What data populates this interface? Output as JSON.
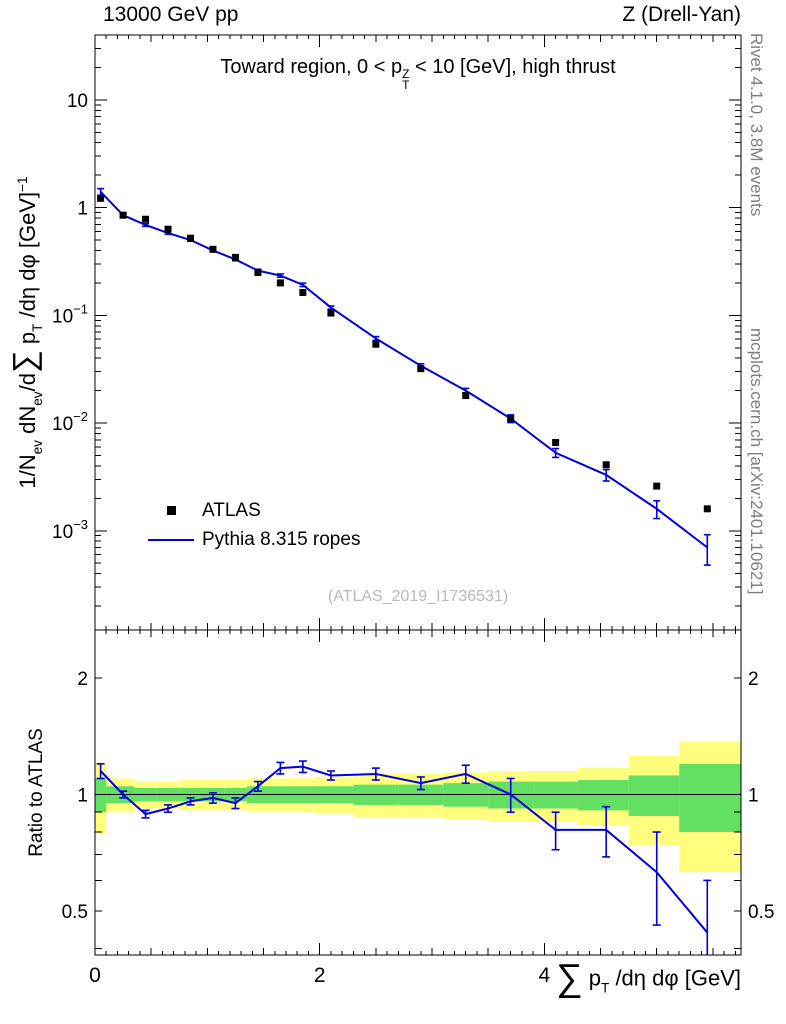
{
  "header": {
    "left": "13000 GeV pp",
    "right": "Z (Drell-Yan)"
  },
  "panel_title_segs": [
    {
      "t": "Toward region, 0 < p"
    },
    {
      "t": "Z|T",
      "m": "stack"
    },
    {
      "t": " < 10 [GeV], high thrust"
    }
  ],
  "labels": {
    "ylabel_main_segs": [
      {
        "t": "1/N"
      },
      {
        "t": "ev",
        "m": "sub"
      },
      {
        "t": " dN"
      },
      {
        "t": "ev",
        "m": "sub"
      },
      {
        "t": "/d"
      },
      {
        "t": "∑",
        "m": "big"
      },
      {
        "t": " p"
      },
      {
        "t": "T",
        "m": "sub"
      },
      {
        "t": " /dη dφ  [GeV]"
      },
      {
        "t": "−1",
        "m": "sup"
      }
    ],
    "ylabel_ratio": "Ratio to ATLAS",
    "xlabel_segs": [
      {
        "t": "∑",
        "m": "big"
      },
      {
        "t": " p"
      },
      {
        "t": "T",
        "m": "sub"
      },
      {
        "t": " /dη dφ [GeV]"
      }
    ],
    "watermark": "(ATLAS_2019_I1736531)",
    "rivet": "Rivet 4.1.0,  3.8M events",
    "mcplots": "mcplots.cern.ch [arXiv:2401.10621]"
  },
  "legend": [
    {
      "label": "ATLAS",
      "type": "marker"
    },
    {
      "label": "Pythia 8.315 ropes",
      "type": "line"
    }
  ],
  "colors": {
    "mc_line": "#0000d9",
    "data_marker": "#000000",
    "band_inner": "#63e063",
    "band_outer": "#ffff7d",
    "watermark": "#b9b9b9",
    "side_text": "#7d7d7d"
  },
  "chart_data": {
    "type": "line",
    "title": "Toward region, 0 < pT(Z) < 10 [GeV], high thrust",
    "xlabel": "Sum pT /deta dphi [GeV]",
    "ylabel": "1/Nev dNev/d Sum pT /deta dphi [GeV]^-1",
    "ratio_ylabel": "Ratio to ATLAS",
    "x_range": [
      0,
      5.75
    ],
    "main_y_range": [
      0.00012,
      40
    ],
    "main_y_scale": "log",
    "ratio_y_range": [
      0.385,
      2.66
    ],
    "ratio_y_scale": "log",
    "x": [
      0.05,
      0.25,
      0.45,
      0.65,
      0.85,
      1.05,
      1.25,
      1.45,
      1.65,
      1.85,
      2.1,
      2.5,
      2.9,
      3.3,
      3.7,
      4.1,
      4.55,
      5.0,
      5.45
    ],
    "series": [
      {
        "name": "ATLAS",
        "values": [
          1.22,
          0.85,
          0.78,
          0.63,
          0.52,
          0.41,
          0.345,
          0.25,
          0.2,
          0.163,
          0.105,
          0.054,
          0.032,
          0.018,
          0.011,
          0.0066,
          0.0041,
          0.0026,
          0.0016
        ]
      },
      {
        "name": "Pythia 8.315 ropes",
        "values": [
          1.4,
          0.85,
          0.69,
          0.58,
          0.5,
          0.4,
          0.33,
          0.26,
          0.234,
          0.192,
          0.118,
          0.061,
          0.034,
          0.02,
          0.011,
          0.0053,
          0.0033,
          0.0016,
          0.0007
        ],
        "errors": [
          0.1,
          0.025,
          0.02,
          0.015,
          0.013,
          0.011,
          0.009,
          0.008,
          0.008,
          0.007,
          0.004,
          0.0025,
          0.0015,
          0.001,
          0.0009,
          0.0005,
          0.0004,
          0.0003,
          0.00022
        ]
      }
    ],
    "ratio": {
      "values": [
        1.15,
        1.0,
        0.89,
        0.92,
        0.96,
        0.98,
        0.95,
        1.05,
        1.17,
        1.18,
        1.12,
        1.13,
        1.07,
        1.13,
        1.0,
        0.81,
        0.81,
        0.63,
        0.44
      ],
      "errors": [
        0.05,
        0.02,
        0.02,
        0.02,
        0.02,
        0.03,
        0.03,
        0.03,
        0.04,
        0.04,
        0.03,
        0.04,
        0.04,
        0.06,
        0.1,
        0.09,
        0.12,
        0.17,
        0.16
      ]
    },
    "bands": {
      "edges": [
        0,
        0.1,
        0.35,
        0.55,
        0.75,
        0.95,
        1.15,
        1.35,
        1.55,
        1.75,
        1.95,
        2.3,
        2.7,
        3.1,
        3.5,
        3.9,
        4.3,
        4.75,
        5.2,
        5.75
      ],
      "inner_halfwidth": [
        0.1,
        0.05,
        0.04,
        0.04,
        0.04,
        0.04,
        0.04,
        0.05,
        0.05,
        0.05,
        0.05,
        0.06,
        0.06,
        0.07,
        0.08,
        0.08,
        0.09,
        0.12,
        0.2
      ],
      "outer_halfwidth": [
        0.21,
        0.1,
        0.08,
        0.08,
        0.09,
        0.09,
        0.09,
        0.1,
        0.1,
        0.1,
        0.11,
        0.13,
        0.13,
        0.14,
        0.15,
        0.15,
        0.17,
        0.26,
        0.37
      ]
    },
    "xticks": [
      {
        "v": 0,
        "t": "0"
      },
      {
        "v": 2,
        "t": "2"
      },
      {
        "v": 4,
        "t": "4"
      }
    ],
    "main_yticks": [
      {
        "v": 10,
        "t": "10"
      },
      {
        "v": 1,
        "t": "1"
      },
      {
        "v": 0.1,
        "t": "10",
        "e": "−1"
      },
      {
        "v": 0.01,
        "t": "10",
        "e": "−2"
      },
      {
        "v": 0.001,
        "t": "10",
        "e": "−3"
      }
    ],
    "ratio_yticks": [
      {
        "v": 0.5,
        "t": "0.5"
      },
      {
        "v": 1,
        "t": "1"
      },
      {
        "v": 2,
        "t": "2"
      }
    ]
  }
}
